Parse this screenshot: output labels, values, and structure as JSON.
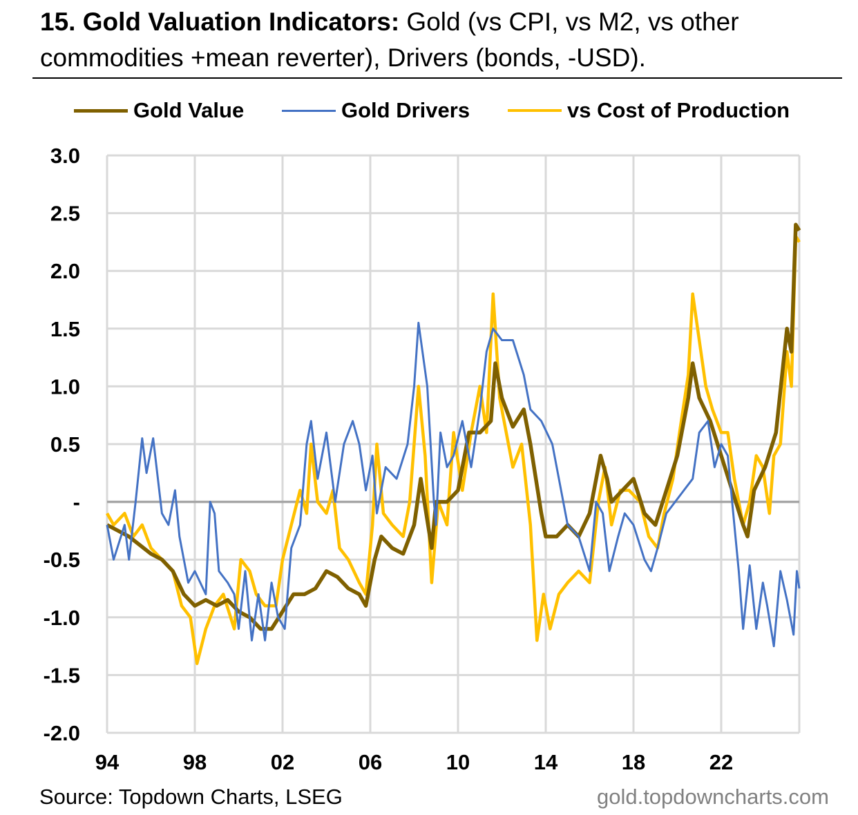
{
  "header": {
    "title_bold": "15. Gold Valuation Indicators:",
    "title_rest": " Gold (vs CPI, vs M2, vs other commodities +mean reverter), Drivers (bonds, -USD)."
  },
  "footer": {
    "source": "Source: Topdown Charts, LSEG",
    "watermark": "gold.topdowncharts.com"
  },
  "chart_data": {
    "type": "line",
    "title": "15. Gold Valuation Indicators",
    "xlabel": "",
    "ylabel": "",
    "xlim": [
      1994,
      2025.56
    ],
    "ylim": [
      -2.0,
      3.0
    ],
    "grid": true,
    "legend_position": "top",
    "x_ticks": [
      {
        "value": 1994,
        "label": "94"
      },
      {
        "value": 1998,
        "label": "98"
      },
      {
        "value": 2002,
        "label": "02"
      },
      {
        "value": 2006,
        "label": "06"
      },
      {
        "value": 2010,
        "label": "10"
      },
      {
        "value": 2014,
        "label": "14"
      },
      {
        "value": 2018,
        "label": "18"
      },
      {
        "value": 2022,
        "label": "22"
      }
    ],
    "y_ticks": [
      {
        "value": 3.0,
        "label": "3.0"
      },
      {
        "value": 2.5,
        "label": "2.5"
      },
      {
        "value": 2.0,
        "label": "2.0"
      },
      {
        "value": 1.5,
        "label": "1.5"
      },
      {
        "value": 1.0,
        "label": "1.0"
      },
      {
        "value": 0.5,
        "label": "0.5"
      },
      {
        "value": 0,
        "label": "-"
      },
      {
        "value": -0.5,
        "label": "-0.5"
      },
      {
        "value": -1.0,
        "label": "-1.0"
      },
      {
        "value": -1.5,
        "label": "-1.5"
      },
      {
        "value": -2.0,
        "label": "-2.0"
      }
    ],
    "series": [
      {
        "name": "Gold Value",
        "color": "#7F6000",
        "points": [
          [
            1994,
            -0.2
          ],
          [
            1995,
            -0.3
          ],
          [
            1996,
            -0.45
          ],
          [
            1996.5,
            -0.5
          ],
          [
            1997,
            -0.6
          ],
          [
            1997.5,
            -0.8
          ],
          [
            1998,
            -0.9
          ],
          [
            1998.5,
            -0.85
          ],
          [
            1999,
            -0.9
          ],
          [
            1999.5,
            -0.85
          ],
          [
            2000,
            -0.95
          ],
          [
            2000.5,
            -1.0
          ],
          [
            2001,
            -1.1
          ],
          [
            2001.5,
            -1.1
          ],
          [
            2002,
            -0.95
          ],
          [
            2002.5,
            -0.8
          ],
          [
            2003,
            -0.8
          ],
          [
            2003.5,
            -0.75
          ],
          [
            2004,
            -0.6
          ],
          [
            2004.5,
            -0.65
          ],
          [
            2005,
            -0.75
          ],
          [
            2005.5,
            -0.8
          ],
          [
            2005.8,
            -0.9
          ],
          [
            2006.2,
            -0.5
          ],
          [
            2006.5,
            -0.3
          ],
          [
            2007,
            -0.4
          ],
          [
            2007.5,
            -0.45
          ],
          [
            2008,
            -0.2
          ],
          [
            2008.3,
            0.2
          ],
          [
            2008.8,
            -0.4
          ],
          [
            2009,
            0.0
          ],
          [
            2009.5,
            0.0
          ],
          [
            2010,
            0.1
          ],
          [
            2010.5,
            0.6
          ],
          [
            2011,
            0.6
          ],
          [
            2011.5,
            0.7
          ],
          [
            2011.7,
            1.2
          ],
          [
            2012,
            0.9
          ],
          [
            2012.5,
            0.65
          ],
          [
            2013,
            0.8
          ],
          [
            2013.3,
            0.5
          ],
          [
            2013.8,
            -0.1
          ],
          [
            2014,
            -0.3
          ],
          [
            2014.5,
            -0.3
          ],
          [
            2015,
            -0.2
          ],
          [
            2015.5,
            -0.3
          ],
          [
            2016,
            -0.1
          ],
          [
            2016.5,
            0.4
          ],
          [
            2016.8,
            0.2
          ],
          [
            2017,
            0.0
          ],
          [
            2017.5,
            0.1
          ],
          [
            2018,
            0.2
          ],
          [
            2018.5,
            -0.1
          ],
          [
            2019,
            -0.2
          ],
          [
            2019.5,
            0.1
          ],
          [
            2020,
            0.4
          ],
          [
            2020.5,
            0.9
          ],
          [
            2020.7,
            1.2
          ],
          [
            2021,
            0.9
          ],
          [
            2021.5,
            0.7
          ],
          [
            2022,
            0.4
          ],
          [
            2022.5,
            0.1
          ],
          [
            2023,
            -0.2
          ],
          [
            2023.2,
            -0.3
          ],
          [
            2023.5,
            0.1
          ],
          [
            2024,
            0.3
          ],
          [
            2024.5,
            0.6
          ],
          [
            2025,
            1.5
          ],
          [
            2025.2,
            1.3
          ],
          [
            2025.4,
            2.4
          ],
          [
            2025.56,
            2.35
          ]
        ]
      },
      {
        "name": "Gold Drivers",
        "color": "#4472C4",
        "points": [
          [
            1994,
            -0.2
          ],
          [
            1994.3,
            -0.5
          ],
          [
            1994.8,
            -0.2
          ],
          [
            1995,
            -0.5
          ],
          [
            1995.3,
            0.0
          ],
          [
            1995.6,
            0.55
          ],
          [
            1995.8,
            0.25
          ],
          [
            1996.1,
            0.55
          ],
          [
            1996.5,
            -0.1
          ],
          [
            1996.8,
            -0.2
          ],
          [
            1997.1,
            0.1
          ],
          [
            1997.3,
            -0.3
          ],
          [
            1997.7,
            -0.7
          ],
          [
            1998,
            -0.6
          ],
          [
            1998.5,
            -0.8
          ],
          [
            1998.7,
            0.0
          ],
          [
            1998.9,
            -0.1
          ],
          [
            1999.1,
            -0.6
          ],
          [
            1999.5,
            -0.7
          ],
          [
            1999.8,
            -0.8
          ],
          [
            2000,
            -1.1
          ],
          [
            2000.3,
            -0.6
          ],
          [
            2000.6,
            -1.2
          ],
          [
            2000.9,
            -0.8
          ],
          [
            2001.2,
            -1.2
          ],
          [
            2001.5,
            -0.7
          ],
          [
            2001.8,
            -1.0
          ],
          [
            2002.1,
            -1.1
          ],
          [
            2002.4,
            -0.4
          ],
          [
            2002.8,
            -0.2
          ],
          [
            2003.1,
            0.5
          ],
          [
            2003.3,
            0.7
          ],
          [
            2003.6,
            0.2
          ],
          [
            2004,
            0.6
          ],
          [
            2004.4,
            0.0
          ],
          [
            2004.8,
            0.5
          ],
          [
            2005.2,
            0.7
          ],
          [
            2005.5,
            0.5
          ],
          [
            2005.8,
            0.1
          ],
          [
            2006.1,
            0.4
          ],
          [
            2006.3,
            -0.1
          ],
          [
            2006.7,
            0.3
          ],
          [
            2007.2,
            0.2
          ],
          [
            2007.7,
            0.5
          ],
          [
            2008.0,
            1.0
          ],
          [
            2008.2,
            1.55
          ],
          [
            2008.6,
            1.0
          ],
          [
            2008.9,
            0.0
          ],
          [
            2009,
            -0.2
          ],
          [
            2009.2,
            0.6
          ],
          [
            2009.5,
            0.3
          ],
          [
            2009.8,
            0.4
          ],
          [
            2010.2,
            0.7
          ],
          [
            2010.6,
            0.3
          ],
          [
            2011,
            0.8
          ],
          [
            2011.3,
            1.3
          ],
          [
            2011.6,
            1.5
          ],
          [
            2012,
            1.4
          ],
          [
            2012.5,
            1.4
          ],
          [
            2013,
            1.1
          ],
          [
            2013.3,
            0.8
          ],
          [
            2013.8,
            0.7
          ],
          [
            2014.3,
            0.5
          ],
          [
            2014.7,
            0.1
          ],
          [
            2015,
            -0.2
          ],
          [
            2015.5,
            -0.3
          ],
          [
            2016,
            -0.6
          ],
          [
            2016.3,
            0.0
          ],
          [
            2016.6,
            -0.1
          ],
          [
            2016.9,
            -0.6
          ],
          [
            2017.3,
            -0.3
          ],
          [
            2017.6,
            -0.1
          ],
          [
            2018,
            -0.2
          ],
          [
            2018.5,
            -0.5
          ],
          [
            2018.8,
            -0.6
          ],
          [
            2019.1,
            -0.4
          ],
          [
            2019.5,
            -0.1
          ],
          [
            2019.9,
            0.0
          ],
          [
            2020.3,
            0.1
          ],
          [
            2020.7,
            0.2
          ],
          [
            2021,
            0.6
          ],
          [
            2021.4,
            0.7
          ],
          [
            2021.7,
            0.3
          ],
          [
            2022,
            0.5
          ],
          [
            2022.3,
            0.4
          ],
          [
            2022.6,
            -0.2
          ],
          [
            2022.8,
            -0.6
          ],
          [
            2023,
            -1.1
          ],
          [
            2023.3,
            -0.55
          ],
          [
            2023.6,
            -1.1
          ],
          [
            2023.9,
            -0.7
          ],
          [
            2024.1,
            -0.9
          ],
          [
            2024.4,
            -1.25
          ],
          [
            2024.7,
            -0.6
          ],
          [
            2025,
            -0.85
          ],
          [
            2025.3,
            -1.15
          ],
          [
            2025.45,
            -0.6
          ],
          [
            2025.56,
            -0.75
          ]
        ]
      },
      {
        "name": "vs Cost of Production",
        "color": "#FFC000",
        "points": [
          [
            1994,
            -0.1
          ],
          [
            1994.3,
            -0.2
          ],
          [
            1994.8,
            -0.1
          ],
          [
            1995.2,
            -0.3
          ],
          [
            1995.6,
            -0.2
          ],
          [
            1996,
            -0.4
          ],
          [
            1996.5,
            -0.5
          ],
          [
            1997,
            -0.6
          ],
          [
            1997.4,
            -0.9
          ],
          [
            1997.8,
            -1.0
          ],
          [
            1998.1,
            -1.4
          ],
          [
            1998.5,
            -1.1
          ],
          [
            1998.9,
            -0.9
          ],
          [
            1999.3,
            -0.8
          ],
          [
            1999.8,
            -1.1
          ],
          [
            2000.1,
            -0.5
          ],
          [
            2000.5,
            -0.6
          ],
          [
            2000.8,
            -0.8
          ],
          [
            2001.2,
            -0.9
          ],
          [
            2001.7,
            -0.9
          ],
          [
            2002,
            -0.5
          ],
          [
            2002.4,
            -0.2
          ],
          [
            2002.8,
            0.1
          ],
          [
            2003.1,
            -0.1
          ],
          [
            2003.3,
            0.5
          ],
          [
            2003.6,
            0.0
          ],
          [
            2004,
            -0.1
          ],
          [
            2004.3,
            0.1
          ],
          [
            2004.6,
            -0.4
          ],
          [
            2005.0,
            -0.5
          ],
          [
            2005.5,
            -0.7
          ],
          [
            2005.8,
            -0.8
          ],
          [
            2006.1,
            -0.2
          ],
          [
            2006.3,
            0.5
          ],
          [
            2006.6,
            -0.1
          ],
          [
            2007,
            -0.2
          ],
          [
            2007.5,
            -0.3
          ],
          [
            2007.8,
            0.0
          ],
          [
            2008.2,
            1.0
          ],
          [
            2008.5,
            0.4
          ],
          [
            2008.8,
            -0.7
          ],
          [
            2009.1,
            0.0
          ],
          [
            2009.5,
            -0.2
          ],
          [
            2009.8,
            0.6
          ],
          [
            2010.2,
            0.1
          ],
          [
            2010.6,
            0.6
          ],
          [
            2011,
            1.0
          ],
          [
            2011.3,
            0.6
          ],
          [
            2011.6,
            1.8
          ],
          [
            2011.9,
            0.9
          ],
          [
            2012.2,
            0.6
          ],
          [
            2012.5,
            0.3
          ],
          [
            2012.9,
            0.5
          ],
          [
            2013.3,
            -0.2
          ],
          [
            2013.6,
            -1.2
          ],
          [
            2013.9,
            -0.8
          ],
          [
            2014.2,
            -1.1
          ],
          [
            2014.6,
            -0.8
          ],
          [
            2015,
            -0.7
          ],
          [
            2015.5,
            -0.6
          ],
          [
            2016,
            -0.7
          ],
          [
            2016.4,
            0.0
          ],
          [
            2016.7,
            0.3
          ],
          [
            2017,
            -0.2
          ],
          [
            2017.4,
            0.1
          ],
          [
            2017.8,
            0.1
          ],
          [
            2018.3,
            0.0
          ],
          [
            2018.7,
            -0.3
          ],
          [
            2019.1,
            -0.4
          ],
          [
            2019.4,
            -0.1
          ],
          [
            2019.8,
            0.2
          ],
          [
            2020.1,
            0.6
          ],
          [
            2020.5,
            1.1
          ],
          [
            2020.7,
            1.8
          ],
          [
            2021,
            1.4
          ],
          [
            2021.3,
            1.0
          ],
          [
            2021.6,
            0.8
          ],
          [
            2022,
            0.6
          ],
          [
            2022.3,
            0.6
          ],
          [
            2022.6,
            0.2
          ],
          [
            2023,
            -0.2
          ],
          [
            2023.3,
            0.0
          ],
          [
            2023.6,
            0.4
          ],
          [
            2023.9,
            0.3
          ],
          [
            2024.2,
            -0.1
          ],
          [
            2024.4,
            0.4
          ],
          [
            2024.7,
            0.5
          ],
          [
            2025,
            1.3
          ],
          [
            2025.2,
            1.0
          ],
          [
            2025.4,
            2.3
          ],
          [
            2025.56,
            2.25
          ]
        ]
      }
    ]
  }
}
